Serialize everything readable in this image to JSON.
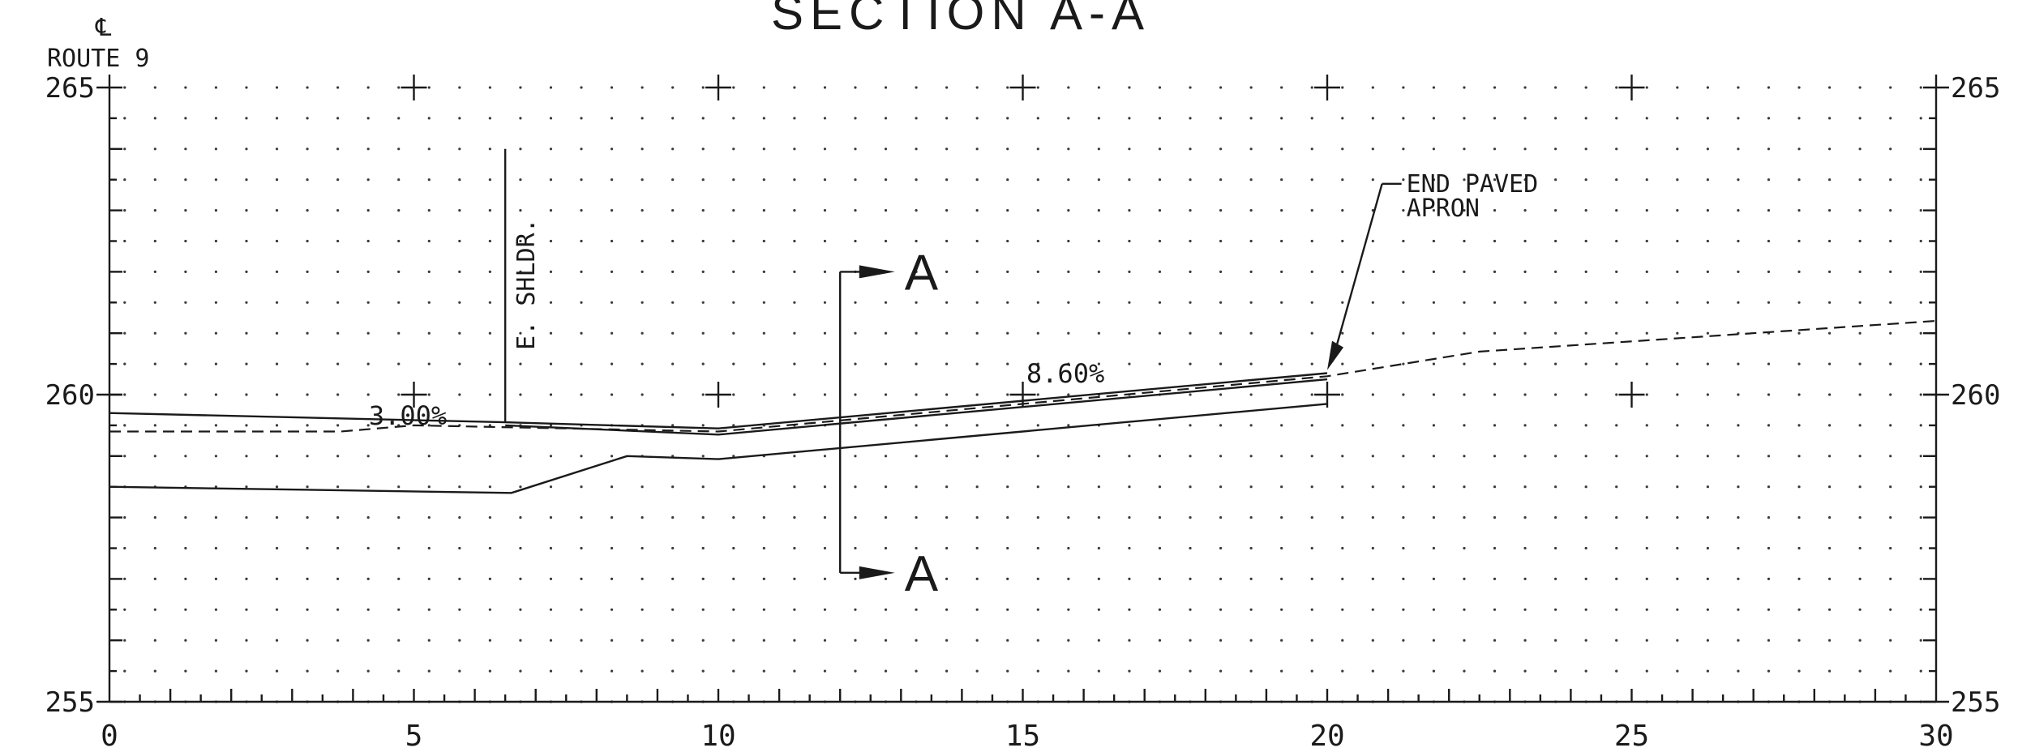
{
  "drawing": {
    "title": "SECTION A-A",
    "centerline_symbol": "℄",
    "centerline_label": "ROUTE 9",
    "x_range": [
      0,
      30
    ],
    "y_range": [
      255,
      265
    ],
    "x_ticks": [
      0,
      5,
      10,
      15,
      20,
      25,
      30
    ],
    "x_tick_labels": [
      "0",
      "5",
      "10",
      "15",
      "20",
      "25",
      "30"
    ],
    "y_ticks": [
      255,
      260,
      265
    ],
    "y_tick_labels": [
      "255",
      "260",
      "265"
    ],
    "grid": "dot",
    "profiles": [
      {
        "style": "solid",
        "points": [
          [
            0,
            259.7
          ],
          [
            6.5,
            259.55
          ],
          [
            10,
            259.45
          ],
          [
            20,
            260.35
          ]
        ]
      },
      {
        "style": "solid",
        "points": [
          [
            6.5,
            259.5
          ],
          [
            10,
            259.35
          ],
          [
            20,
            260.25
          ]
        ]
      },
      {
        "style": "dashed",
        "points": [
          [
            0,
            259.4
          ],
          [
            3.8,
            259.4
          ],
          [
            5,
            259.5
          ],
          [
            10,
            259.4
          ],
          [
            20,
            260.3
          ],
          [
            22.5,
            260.7
          ],
          [
            30,
            261.2
          ]
        ]
      },
      {
        "style": "solid",
        "points": [
          [
            0,
            258.5
          ],
          [
            6.6,
            258.4
          ],
          [
            8.5,
            259.0
          ],
          [
            10,
            258.95
          ],
          [
            20,
            259.85
          ]
        ]
      }
    ],
    "annotations": {
      "slope_left": {
        "text": "3.00%",
        "x": 4.9,
        "y": 259.8
      },
      "slope_right": {
        "text": "8.60%",
        "x": 15.7,
        "y": 260.25
      },
      "shoulder": {
        "text": "E. SHLDR.",
        "x": 6.5,
        "y_top": 264.0,
        "y_bottom": 259.55
      },
      "end_paved": {
        "lines": [
          "END PAVED",
          "APRON"
        ],
        "text_x": 21.3,
        "text_y": 263.3,
        "arrow_to": [
          20,
          260.4
        ]
      },
      "section_cut": {
        "label": "A",
        "x": 12.0,
        "y_top": 262.0,
        "y_bottom": 257.1,
        "arrow_to_x": 12.9
      }
    }
  }
}
